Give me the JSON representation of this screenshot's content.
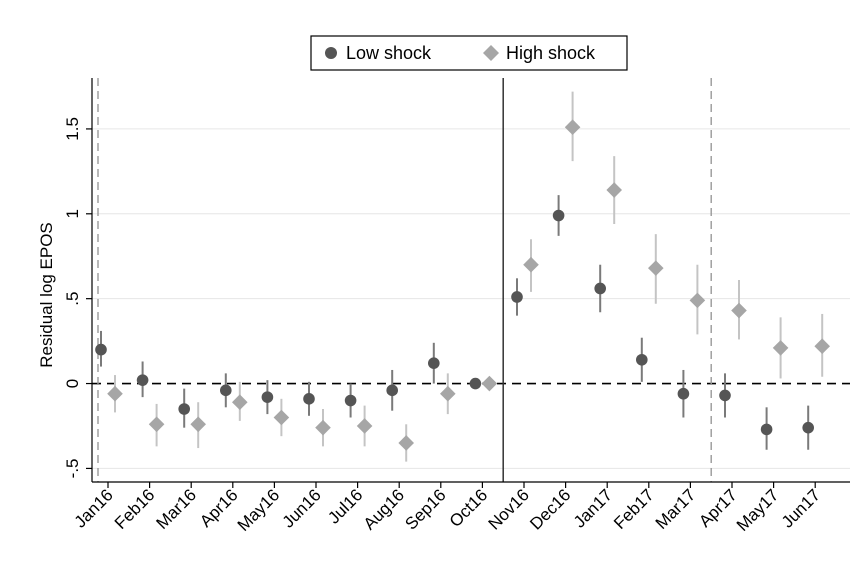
{
  "chart_data": {
    "type": "scatter",
    "xlabel": "",
    "ylabel": "Residual log EPOS",
    "categories": [
      "Jan16",
      "Feb16",
      "Mar16",
      "Apr16",
      "May16",
      "Jun16",
      "Jul16",
      "Aug16",
      "Sep16",
      "Oct16",
      "Nov16",
      "Dec16",
      "Jan17",
      "Feb17",
      "Mar17",
      "Apr17",
      "May17",
      "Jun17"
    ],
    "yticks": [
      {
        "value": -0.5,
        "label": "-.5"
      },
      {
        "value": 0,
        "label": "0"
      },
      {
        "value": 0.5,
        "label": ".5"
      },
      {
        "value": 1,
        "label": "1"
      },
      {
        "value": 1.5,
        "label": "1.5"
      }
    ],
    "ylim": [
      -0.58,
      1.8
    ],
    "grid": "horizontal",
    "legend": "top-center",
    "reference_lines": {
      "zero_dashed": 0,
      "solid_between": [
        "Oct16",
        "Nov16"
      ],
      "dashed_before": [
        "Jan16",
        "Apr17"
      ]
    },
    "series": [
      {
        "name": "Low shock",
        "marker": "circle",
        "color": "#555555",
        "values": [
          0.2,
          0.02,
          -0.15,
          -0.04,
          -0.08,
          -0.09,
          -0.1,
          -0.04,
          0.12,
          0.0,
          0.51,
          0.99,
          0.56,
          0.14,
          -0.06,
          -0.07,
          -0.27,
          -0.26
        ],
        "ci_low": [
          0.1,
          -0.08,
          -0.26,
          -0.14,
          -0.18,
          -0.19,
          -0.2,
          -0.16,
          0.0,
          0.0,
          0.4,
          0.87,
          0.42,
          0.01,
          -0.2,
          -0.2,
          -0.39,
          -0.39
        ],
        "ci_high": [
          0.31,
          0.13,
          -0.03,
          0.06,
          0.02,
          0.01,
          0.0,
          0.08,
          0.24,
          0.0,
          0.62,
          1.11,
          0.7,
          0.27,
          0.08,
          0.06,
          -0.14,
          -0.13
        ]
      },
      {
        "name": "High shock",
        "marker": "diamond",
        "color": "#a6a6a6",
        "values": [
          -0.06,
          -0.24,
          -0.24,
          -0.11,
          -0.2,
          -0.26,
          -0.25,
          -0.35,
          -0.06,
          0.0,
          0.7,
          1.51,
          1.14,
          0.68,
          0.49,
          0.43,
          0.21,
          0.22
        ],
        "ci_low": [
          -0.17,
          -0.37,
          -0.38,
          -0.22,
          -0.31,
          -0.37,
          -0.37,
          -0.46,
          -0.18,
          0.0,
          0.54,
          1.31,
          0.94,
          0.47,
          0.29,
          0.26,
          0.03,
          0.04
        ],
        "ci_high": [
          0.05,
          -0.12,
          -0.11,
          0.01,
          -0.09,
          -0.15,
          -0.13,
          -0.24,
          0.06,
          0.0,
          0.85,
          1.72,
          1.34,
          0.88,
          0.7,
          0.61,
          0.39,
          0.41
        ]
      }
    ]
  }
}
